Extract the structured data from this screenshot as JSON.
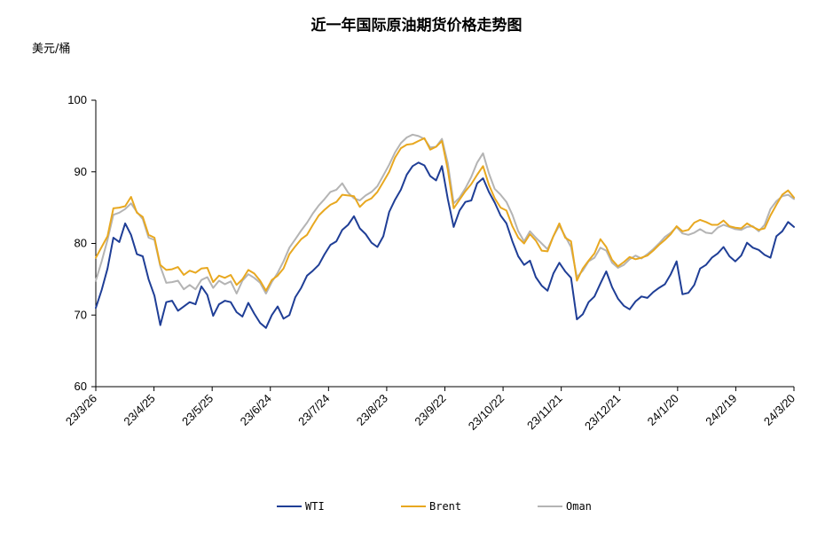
{
  "chart_data": {
    "type": "line",
    "title": "近一年国际原油期货价格走势图",
    "ylabel": "美元/桶",
    "ylim": [
      60,
      100
    ],
    "yticks": [
      "60",
      "70",
      "80",
      "90",
      "100"
    ],
    "xticks": [
      "23/3/26",
      "23/4/25",
      "23/5/25",
      "23/6/24",
      "23/7/24",
      "23/8/23",
      "23/9/22",
      "23/10/22",
      "23/11/21",
      "23/12/21",
      "24/1/20",
      "24/2/19",
      "24/3/20"
    ],
    "grid": false,
    "legend": "bottom",
    "series": [
      {
        "name": "WTI",
        "color": "#1f3e96",
        "values": [
          71.0,
          73.5,
          76.5,
          80.8,
          80.2,
          82.8,
          81.2,
          78.5,
          78.2,
          75.0,
          72.7,
          68.6,
          71.8,
          72.0,
          70.6,
          71.2,
          71.8,
          71.5,
          74.0,
          72.8,
          69.9,
          71.5,
          72.0,
          71.8,
          70.4,
          69.8,
          71.7,
          70.2,
          68.9,
          68.2,
          70.0,
          71.2,
          69.5,
          70.0,
          72.5,
          73.8,
          75.5,
          76.2,
          77.0,
          78.5,
          79.8,
          80.3,
          81.9,
          82.6,
          83.8,
          82.1,
          81.3,
          80.1,
          79.5,
          81.0,
          84.4,
          86.1,
          87.5,
          89.6,
          90.8,
          91.3,
          90.9,
          89.4,
          88.8,
          90.8,
          86.2,
          82.3,
          84.6,
          85.8,
          86.0,
          88.4,
          89.1,
          87.2,
          85.7,
          83.9,
          82.8,
          80.3,
          78.2,
          77.0,
          77.6,
          75.3,
          74.1,
          73.4,
          75.8,
          77.3,
          76.1,
          75.2,
          69.4,
          70.1,
          71.8,
          72.6,
          74.4,
          76.1,
          73.9,
          72.3,
          71.3,
          70.8,
          71.9,
          72.6,
          72.4,
          73.2,
          73.8,
          74.3,
          75.7,
          77.5,
          72.9,
          73.1,
          74.2,
          76.5,
          77.0,
          78.0,
          78.6,
          79.5,
          78.2,
          77.5,
          78.3,
          80.1,
          79.4,
          79.1,
          78.4,
          78.0,
          81.0,
          81.7,
          83.0,
          82.3
        ]
      },
      {
        "name": "Brent",
        "color": "#e8a820",
        "values": [
          78.0,
          79.5,
          81.0,
          84.9,
          85.0,
          85.2,
          86.5,
          84.3,
          83.7,
          81.2,
          80.8,
          77.0,
          76.3,
          76.4,
          76.7,
          75.6,
          76.2,
          75.9,
          76.5,
          76.6,
          74.6,
          75.5,
          75.2,
          75.6,
          74.2,
          75.0,
          76.3,
          75.8,
          74.8,
          73.4,
          74.9,
          75.5,
          76.5,
          78.5,
          79.6,
          80.6,
          81.2,
          82.6,
          83.9,
          84.7,
          85.4,
          85.8,
          86.8,
          86.7,
          86.6,
          85.1,
          85.9,
          86.3,
          87.2,
          88.6,
          90.0,
          92.0,
          93.3,
          93.8,
          93.9,
          94.3,
          94.7,
          93.1,
          93.5,
          94.3,
          90.3,
          84.9,
          86.1,
          87.3,
          88.3,
          89.6,
          90.8,
          88.2,
          86.3,
          85.0,
          84.6,
          82.4,
          80.8,
          80.0,
          81.3,
          80.4,
          79.0,
          78.9,
          81.0,
          82.8,
          80.8,
          80.3,
          74.8,
          76.5,
          77.6,
          78.6,
          80.6,
          79.5,
          77.7,
          76.8,
          77.4,
          78.1,
          77.8,
          78.0,
          78.3,
          79.0,
          79.8,
          80.5,
          81.3,
          82.4,
          81.7,
          81.9,
          82.9,
          83.3,
          83.0,
          82.6,
          82.6,
          83.2,
          82.4,
          82.2,
          82.1,
          82.8,
          82.3,
          81.9,
          82.1,
          83.9,
          85.4,
          86.8,
          87.4,
          86.4
        ]
      },
      {
        "name": "Oman",
        "color": "#b4b4b4",
        "values": [
          74.8,
          77.5,
          80.5,
          84.0,
          84.3,
          84.8,
          85.6,
          84.4,
          83.4,
          80.8,
          80.5,
          76.8,
          74.5,
          74.6,
          74.8,
          73.6,
          74.2,
          73.6,
          74.9,
          75.3,
          73.8,
          74.8,
          74.3,
          74.7,
          73.0,
          74.8,
          75.7,
          75.2,
          74.5,
          73.0,
          74.6,
          75.9,
          77.5,
          79.4,
          80.6,
          81.8,
          82.9,
          84.2,
          85.3,
          86.2,
          87.2,
          87.5,
          88.4,
          87.1,
          86.3,
          86.0,
          86.7,
          87.2,
          88.0,
          89.5,
          91.0,
          92.7,
          94.0,
          94.8,
          95.2,
          95.0,
          94.6,
          93.4,
          93.5,
          94.6,
          91.2,
          85.6,
          86.4,
          87.7,
          89.3,
          91.3,
          92.6,
          89.8,
          87.6,
          86.8,
          85.8,
          84.0,
          81.7,
          80.3,
          81.7,
          80.8,
          80.0,
          79.2,
          81.0,
          82.5,
          81.0,
          79.5,
          75.3,
          76.2,
          77.5,
          78.0,
          79.4,
          79.0,
          77.3,
          76.6,
          77.0,
          77.8,
          78.3,
          77.9,
          78.5,
          79.2,
          80.0,
          80.9,
          81.5,
          82.3,
          81.4,
          81.2,
          81.5,
          82.0,
          81.5,
          81.4,
          82.2,
          82.6,
          82.3,
          82.0,
          81.9,
          82.3,
          82.4,
          81.7,
          82.6,
          84.8,
          85.9,
          86.6,
          86.8,
          86.2
        ]
      }
    ]
  }
}
